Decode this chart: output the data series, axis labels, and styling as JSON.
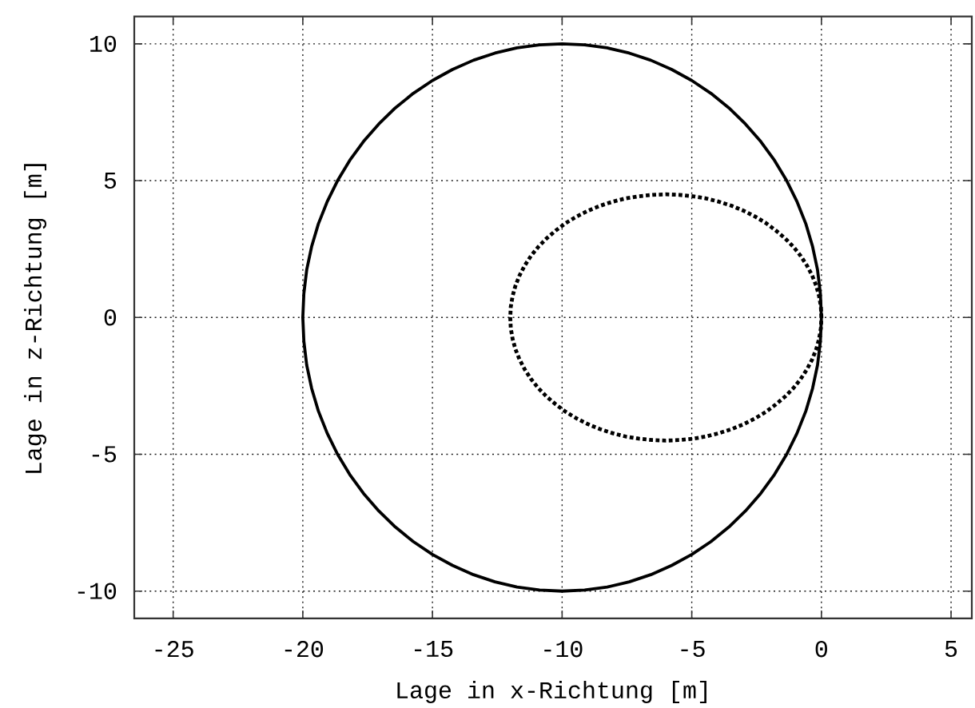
{
  "chart_data": {
    "type": "line",
    "xlabel": "Lage in x-Richtung [m]",
    "ylabel": "Lage in z-Richtung [m]",
    "xlim": [
      -26.5,
      5.8
    ],
    "ylim": [
      -11,
      11
    ],
    "xticks": [
      -25,
      -20,
      -15,
      -10,
      -5,
      0,
      5
    ],
    "yticks": [
      -10,
      -5,
      0,
      5,
      10
    ],
    "grid": true,
    "series": [
      {
        "color": "#000000",
        "line_style": "solid",
        "x": [
          0,
          -0.04,
          -0.15,
          -0.34,
          -0.6,
          -0.94,
          -1.34,
          -1.81,
          -2.34,
          -2.93,
          -3.57,
          -4.26,
          -5,
          -5.77,
          -6.58,
          -7.41,
          -8.26,
          -9.13,
          -10,
          -10.87,
          -11.74,
          -12.59,
          -13.42,
          -14.23,
          -15,
          -15.74,
          -16.43,
          -17.07,
          -17.66,
          -18.19,
          -18.66,
          -19.06,
          -19.4,
          -19.66,
          -19.85,
          -19.96,
          -20,
          -19.96,
          -19.85,
          -19.66,
          -19.4,
          -19.06,
          -18.66,
          -18.19,
          -17.66,
          -17.07,
          -16.43,
          -15.74,
          -15,
          -14.23,
          -13.42,
          -12.59,
          -11.74,
          -10.87,
          -10,
          -9.13,
          -8.26,
          -7.41,
          -6.58,
          -5.77,
          -5,
          -4.26,
          -3.57,
          -2.93,
          -2.34,
          -1.81,
          -1.34,
          -0.94,
          -0.6,
          -0.34,
          -0.15,
          -0.04,
          0,
          -0.04
        ],
        "values": [
          0,
          0.87,
          1.74,
          2.59,
          3.42,
          4.23,
          5,
          5.74,
          6.43,
          7.07,
          7.66,
          8.19,
          8.66,
          9.06,
          9.4,
          9.66,
          9.85,
          9.96,
          10,
          9.96,
          9.85,
          9.66,
          9.4,
          9.06,
          8.66,
          8.19,
          7.66,
          7.07,
          6.43,
          5.74,
          5,
          4.23,
          3.42,
          2.59,
          1.74,
          0.87,
          0,
          -0.87,
          -1.74,
          -2.59,
          -3.42,
          -4.23,
          -5,
          -5.74,
          -6.43,
          -7.07,
          -7.66,
          -8.19,
          -8.66,
          -9.06,
          -9.4,
          -9.66,
          -9.85,
          -9.96,
          -10,
          -9.96,
          -9.85,
          -9.66,
          -9.4,
          -9.06,
          -8.66,
          -8.19,
          -7.66,
          -7.07,
          -6.43,
          -5.74,
          -5,
          -4.23,
          -3.42,
          -2.59,
          -1.74,
          -0.87,
          0,
          0.87
        ]
      },
      {
        "color": "#000000",
        "line_style": "dotted",
        "x": [
          0,
          -0.02,
          -0.09,
          -0.2,
          -0.36,
          -0.56,
          -0.8,
          -1.08,
          -1.4,
          -1.76,
          -2.14,
          -2.56,
          -3,
          -3.46,
          -3.95,
          -4.45,
          -4.96,
          -5.48,
          -6,
          -6.52,
          -7.04,
          -7.55,
          -8.05,
          -8.54,
          -9,
          -9.44,
          -9.86,
          -10.24,
          -10.6,
          -10.92,
          -11.2,
          -11.44,
          -11.64,
          -11.8,
          -11.91,
          -11.98,
          -12,
          -11.98,
          -11.91,
          -11.8,
          -11.64,
          -11.44,
          -11.2,
          -10.92,
          -10.6,
          -10.24,
          -9.86,
          -9.44,
          -9,
          -8.54,
          -8.05,
          -7.55,
          -7.04,
          -6.52,
          -6,
          -5.48,
          -4.96,
          -4.45,
          -3.95,
          -3.46,
          -3,
          -2.56,
          -2.14,
          -1.76,
          -1.4,
          -1.08,
          -0.8,
          -0.56,
          -0.36,
          -0.2,
          -0.09,
          -0.02,
          0,
          -0.02
        ],
        "values": [
          0,
          0.39,
          0.78,
          1.16,
          1.54,
          1.9,
          2.25,
          2.58,
          2.89,
          3.18,
          3.45,
          3.69,
          3.9,
          4.08,
          4.23,
          4.35,
          4.43,
          4.48,
          4.5,
          4.48,
          4.43,
          4.35,
          4.23,
          4.08,
          3.9,
          3.69,
          3.45,
          3.18,
          2.89,
          2.58,
          2.25,
          1.9,
          1.54,
          1.16,
          0.78,
          0.39,
          0,
          -0.39,
          -0.78,
          -1.16,
          -1.54,
          -1.9,
          -2.25,
          -2.58,
          -2.89,
          -3.18,
          -3.45,
          -3.69,
          -3.9,
          -4.08,
          -4.23,
          -4.35,
          -4.43,
          -4.48,
          -4.5,
          -4.48,
          -4.43,
          -4.35,
          -4.23,
          -4.08,
          -3.9,
          -3.69,
          -3.45,
          -3.18,
          -2.89,
          -2.58,
          -2.25,
          -1.9,
          -1.54,
          -1.16,
          -0.78,
          -0.39,
          0,
          0.39
        ]
      }
    ]
  }
}
